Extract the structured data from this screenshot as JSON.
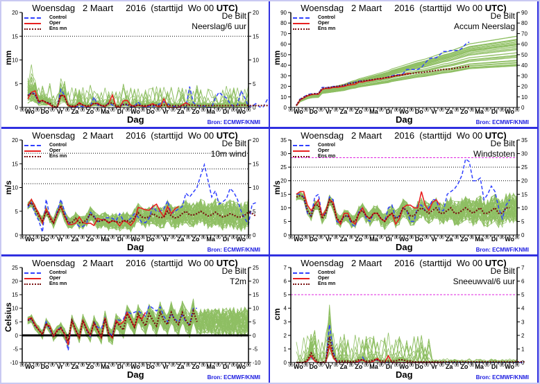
{
  "common": {
    "title_prefix": "Woensdag   2 Maart     2016  (starttijd  Wo 00 ",
    "title_suffix": "UTC)",
    "location": "De Bilt",
    "xlabel": "Dag",
    "source": "Bron:  ECMWF/KNMI",
    "legend": {
      "control": "Control",
      "oper": "Oper",
      "ensmean": "Ens mn"
    },
    "day_labels": [
      "Wo",
      "Do",
      "Vr",
      "Za",
      "Zo",
      "Ma",
      "Di",
      "Wo",
      "Do",
      "Vr",
      "Za",
      "Zo",
      "Ma",
      "Di",
      "Wo"
    ],
    "hour_tick_label": "00",
    "colors": {
      "control": "#3040ff",
      "oper": "#e82020",
      "ensmean": "#7a1010",
      "members": "#6aaa30",
      "warning": "#e020e0",
      "frame": "#3030e0"
    }
  },
  "chart_data": [
    {
      "id": "precip6h",
      "type": "line",
      "variable": "Neerslag/6 uur",
      "ylabel": "mm",
      "ylim": [
        0,
        20
      ],
      "yticks": [
        0,
        5,
        10,
        15,
        20
      ],
      "hlines_dotted": [
        15
      ],
      "hline_warning": null,
      "series": [
        {
          "name": "Control",
          "values": [
            2.5,
            3.2,
            2.8,
            1.0,
            1.5,
            1.0,
            0.8,
            0,
            0,
            3.8,
            2.5,
            0.5,
            0,
            0,
            0.3,
            0.2,
            0,
            0.2,
            2.2,
            0.5,
            0.3,
            0.2,
            1.0,
            0.5,
            0,
            0.2,
            0.8,
            0.5,
            0,
            0.2,
            1.2,
            0.3,
            0,
            0.3,
            0.2,
            0.5,
            0.8,
            1.2,
            0.8,
            0.3,
            0.2,
            0.2,
            0.1,
            0,
            4.4,
            1.0,
            0.5,
            0.2,
            0.3,
            0,
            0,
            2.0,
            3.2,
            2.5,
            2.0,
            0.8,
            0.2,
            0.5,
            3.5,
            2.0,
            0.2,
            0.3,
            0.8,
            0.1,
            0.1,
            1.5,
            2.5,
            3.0,
            0.8
          ]
        },
        {
          "name": "Oper",
          "values": [
            1.8,
            3.2,
            3.5,
            1.2,
            1.5,
            1.0,
            0.6,
            0,
            0,
            2.5,
            2.5,
            0.4,
            0.2,
            0.2,
            1.0,
            0.5,
            0.2,
            0.3,
            0.8,
            0.9,
            0.4,
            0.2,
            0.8,
            2.6,
            0.2,
            0,
            1.4,
            1.5,
            0.5,
            0.2,
            0.5,
            0.3,
            0.2,
            0.5,
            0.8,
            0.3,
            0.1,
            1.8,
            0.2,
            0,
            0,
            0,
            0.5,
            1.0,
            0.5
          ]
        },
        {
          "name": "Ens mn",
          "values": [
            2.5,
            3.0,
            2.6,
            1.2,
            1.4,
            1.1,
            0.9,
            0.2,
            0.1,
            2.7,
            2.2,
            0.4,
            0.3,
            0.3,
            0.8,
            0.5,
            0.3,
            0.4,
            0.9,
            0.7,
            0.4,
            0.3,
            0.8,
            1.0,
            0.3,
            0.3,
            0.6,
            0.7,
            0.3,
            0.3,
            0.5,
            0.4,
            0.4,
            0.4,
            0.5,
            0.5,
            0.4,
            0.5,
            0.5,
            0.4,
            0.4,
            0.4,
            0.4,
            0.4,
            0.5,
            0.5,
            0.4,
            0.4,
            0.4,
            0.4,
            0.4,
            0.4,
            0.4,
            0.4,
            0.4,
            0.4,
            0.4,
            0.4,
            0.5,
            0.5,
            0.4,
            0.4,
            0.4,
            0.4,
            0.4,
            0.4,
            0.5,
            0.5,
            0.4
          ]
        }
      ],
      "members_envelope_max": 9.5
    },
    {
      "id": "accum",
      "type": "line",
      "variable": "Accum Neerslag",
      "ylabel": "mm",
      "ylim": [
        0,
        90
      ],
      "yticks": [
        0,
        10,
        20,
        30,
        40,
        50,
        60,
        70,
        80,
        90
      ],
      "hlines_dotted": [],
      "hline_warning": null,
      "series": [
        {
          "name": "Control",
          "values": [
            2,
            8,
            10,
            12,
            13,
            13,
            13,
            19,
            19,
            19,
            20,
            20,
            20,
            21,
            23,
            23,
            24,
            25,
            25,
            25,
            26,
            26,
            27,
            27,
            28,
            29,
            30,
            31,
            31,
            32,
            36,
            36,
            36,
            36,
            38,
            42,
            46,
            47,
            47,
            50,
            53,
            53,
            54,
            54,
            54,
            56,
            60,
            62
          ]
        },
        {
          "name": "Oper",
          "values": [
            1.5,
            7,
            9,
            11,
            12,
            12.5,
            12.5,
            17,
            18,
            18,
            19,
            19,
            19.5,
            20,
            21,
            21.5,
            22,
            24,
            24,
            25,
            25.5,
            26,
            27,
            27,
            28,
            28.5,
            29,
            30,
            30.5,
            31,
            32,
            32.5
          ]
        },
        {
          "name": "Ens mn",
          "values": [
            2,
            7.5,
            9.5,
            11.5,
            12.5,
            13,
            13,
            18,
            18.5,
            19,
            19.5,
            20,
            20.5,
            21,
            22,
            23,
            23.5,
            24.5,
            25,
            25.5,
            26,
            26.5,
            27,
            27.5,
            28,
            28.5,
            29.5,
            30,
            30.5,
            31,
            31.5,
            32,
            32.5,
            33,
            33.2,
            33.5,
            34,
            34.5,
            35,
            35.5,
            36,
            36.2,
            36.5,
            37,
            37.5,
            38,
            38.5,
            39
          ]
        }
      ]
    },
    {
      "id": "wind10m",
      "type": "line",
      "variable": "10m wind",
      "ylabel": "m/s",
      "ylim": [
        0,
        20
      ],
      "yticks": [
        0,
        5,
        10,
        15,
        20
      ],
      "hlines_dotted": [
        10.8,
        13.9,
        17.2
      ],
      "hline_warning": null,
      "series": [
        {
          "name": "Control",
          "values": [
            5.8,
            6.8,
            4.5,
            3.0,
            0.6,
            7.5,
            4.0,
            2.5,
            5.0,
            7.5,
            5.0,
            2.5,
            2.2,
            2.5,
            1.8,
            1.8,
            2.5,
            4.8,
            4.0,
            2.8,
            3.0,
            3.6,
            3.6,
            3.5,
            3.0,
            4.5,
            3.0,
            2.8,
            3.5,
            4.5,
            3.8,
            2.6,
            2.6,
            3.5,
            6.0,
            5.0,
            5.0,
            5.5,
            7.2,
            4.5,
            5.0,
            5.5,
            6.0,
            8.8,
            8.0,
            9.0,
            10.0,
            12.5,
            14.8,
            11.5,
            8.0,
            9.3,
            6.5,
            7.0,
            7.6,
            9.8,
            9.0,
            7.5,
            5.0,
            3.5,
            2.2,
            6.5,
            6.8
          ]
        },
        {
          "name": "Oper",
          "values": [
            6.2,
            7.5,
            6.0,
            4.5,
            2.5,
            5.5,
            4.0,
            2.5,
            4.5,
            6.0,
            4.0,
            2.2,
            2.2,
            2.5,
            3.8,
            2.6,
            2.4,
            2.5,
            2.0,
            3.5,
            3.2,
            3.2,
            2.5,
            3.0,
            2.8,
            1.9,
            3.0,
            2.7,
            2.0,
            3.0,
            5.8,
            5.6,
            5.3,
            5.2,
            6.0,
            6.5,
            5.0,
            3.8,
            6.0,
            4.5,
            5.5,
            6.0
          ]
        },
        {
          "name": "Ens mn",
          "values": [
            6.2,
            6.8,
            5.5,
            4.0,
            3.0,
            5.0,
            3.5,
            2.5,
            4.5,
            6.2,
            4.0,
            2.6,
            2.6,
            3.5,
            2.6,
            2.6,
            3.2,
            4.5,
            3.8,
            2.8,
            3.0,
            3.2,
            2.6,
            3.0,
            2.8,
            2.6,
            3.0,
            3.0,
            2.6,
            3.6,
            4.7,
            3.8,
            3.6,
            3.8,
            4.5,
            4.0,
            3.6,
            3.8,
            5.0,
            4.0,
            3.6,
            3.8,
            4.5,
            5.0,
            4.2,
            4.2,
            4.5,
            5.0,
            4.5,
            4.0,
            4.2,
            4.8,
            4.2,
            3.8,
            4.0,
            4.5,
            4.2,
            3.8,
            3.8,
            4.2,
            4.8,
            4.5,
            4.0
          ]
        }
      ]
    },
    {
      "id": "gusts",
      "type": "line",
      "variable": "Windstoten",
      "ylabel": "m/s",
      "ylim": [
        0,
        35
      ],
      "yticks": [
        0,
        5,
        10,
        15,
        20,
        25,
        30,
        35
      ],
      "hlines_dotted": [
        20,
        25
      ],
      "hline_warning": 28.5,
      "series": [
        {
          "name": "Control",
          "values": [
            15,
            15,
            14,
            8,
            7,
            14,
            15,
            7,
            8,
            14,
            13,
            5,
            4,
            7,
            7,
            4,
            3,
            9,
            10,
            6,
            5,
            8,
            8,
            6,
            5,
            10,
            11,
            6,
            7,
            10,
            9,
            5,
            5,
            11,
            11,
            9,
            10,
            13,
            13,
            9,
            9,
            15,
            16,
            17,
            19,
            22,
            28,
            27,
            20,
            20,
            21,
            13,
            15,
            18,
            16,
            10,
            6,
            11,
            13
          ]
        },
        {
          "name": "Oper",
          "values": [
            15,
            16,
            16,
            11,
            9,
            11,
            13,
            7,
            9,
            13,
            12,
            6,
            4,
            8,
            8,
            5,
            4,
            8,
            10,
            7,
            6,
            8,
            8,
            6,
            5,
            7,
            8,
            4,
            6,
            10,
            11,
            11,
            10,
            10,
            16,
            11,
            9,
            12,
            13,
            11
          ]
        },
        {
          "name": "Ens mn",
          "values": [
            14,
            14.5,
            14,
            9,
            7,
            11,
            11,
            6,
            8,
            13,
            11,
            6,
            5,
            7,
            7,
            5,
            5,
            8,
            9,
            7,
            6,
            8,
            8,
            6,
            5,
            7,
            8,
            6,
            7,
            10,
            9,
            7,
            7,
            9,
            10,
            9,
            8,
            9,
            10,
            8,
            8,
            9,
            10,
            8,
            8,
            9,
            10,
            9,
            8,
            9,
            10,
            8,
            8,
            9,
            10,
            8,
            8,
            10,
            10
          ]
        }
      ]
    },
    {
      "id": "t2m",
      "type": "line",
      "variable": "T2m",
      "ylabel": "Celsius",
      "ylim": [
        -10,
        25
      ],
      "yticks": [
        -10,
        -5,
        0,
        5,
        10,
        15,
        20,
        25
      ],
      "hlines_dotted": [],
      "hline_warning": null,
      "zero_line": 0,
      "series": [
        {
          "name": "Control",
          "values": [
            5.5,
            6.0,
            3.5,
            2.0,
            0.5,
            5.0,
            2.0,
            -0.5,
            2.0,
            3.0,
            0.5,
            -5.5,
            6.0,
            2.0,
            -0.5,
            5.5,
            2.0,
            -0.5,
            5.0,
            3.0,
            2.5,
            6.5,
            1.0,
            0,
            6.0,
            5.5,
            6.0,
            9.0,
            8.0,
            8.5,
            9.0,
            8.0,
            7.0,
            11.0,
            10.0,
            9.0,
            10.5,
            7.0,
            5.0,
            8.0,
            6.0,
            5.0,
            7.5,
            5.0,
            4.0,
            10.0,
            10.0
          ]
        },
        {
          "name": "Oper",
          "values": [
            6.0,
            6.5,
            4.0,
            2.0,
            0.5,
            4.0,
            3.5,
            -0.5,
            2.0,
            2.5,
            0.5,
            -3.5,
            5.5,
            2.0,
            -1.0,
            5.5,
            2.5,
            0,
            4.5,
            2.0,
            -1.0,
            6.5,
            0.5,
            -1.0,
            5.5,
            4.0,
            5.0,
            8.5,
            6.0,
            3.0,
            7.0,
            6.0,
            8.5
          ]
        },
        {
          "name": "Ens mn",
          "values": [
            5.5,
            6.2,
            3.5,
            2.0,
            0.3,
            4.5,
            2.5,
            -0.2,
            1.5,
            2.8,
            0.5,
            -2.0,
            5.5,
            2.0,
            -0.5,
            5.5,
            2.0,
            0,
            4.8,
            2.0,
            -0.5,
            6.2,
            0.5,
            -0.5,
            5.0,
            3.5,
            2.0,
            8.0,
            5.5,
            3.0,
            8.0,
            5.5,
            3.5,
            8.0,
            5.5,
            3.5,
            8.5,
            5.5,
            4.0,
            8.5,
            5.5,
            4.0,
            8.5,
            5.5,
            3.5,
            9.0,
            5.0
          ]
        }
      ]
    },
    {
      "id": "snow6h",
      "type": "line",
      "variable": "Sneeuwval/6 uur",
      "ylabel": "cm",
      "ylim": [
        0,
        7
      ],
      "yticks": [
        0,
        1,
        2,
        3,
        4,
        5,
        6,
        7
      ],
      "hlines_dotted": [],
      "hline_warning": 5,
      "series": [
        {
          "name": "Control",
          "values": [
            0,
            0,
            0,
            0.1,
            0.4,
            0.1,
            0,
            0,
            0,
            2.8,
            0.8,
            0,
            0,
            0,
            0,
            0,
            0,
            0,
            0.4,
            0,
            0,
            0.1,
            0.2,
            0,
            0,
            0,
            0,
            0,
            0,
            0,
            0,
            0,
            0,
            0,
            0,
            0,
            0,
            0,
            0,
            0,
            0,
            0,
            0,
            0,
            0,
            0,
            0,
            0,
            0,
            0,
            0,
            0,
            0,
            0,
            0,
            0,
            0,
            0,
            0,
            0,
            0,
            0,
            0
          ]
        },
        {
          "name": "Oper",
          "values": [
            0,
            0,
            0,
            0.1,
            0.5,
            0.1,
            0,
            0,
            0,
            1.3,
            0.4,
            0,
            0,
            0,
            0,
            0,
            0,
            0.1,
            0.2,
            0,
            0,
            0.1,
            0.3,
            0,
            0,
            0.5,
            0,
            0,
            0,
            0,
            0,
            0,
            0,
            0,
            0,
            0,
            0,
            0,
            0,
            0,
            0
          ]
        },
        {
          "name": "Ens mn",
          "values": [
            0,
            0,
            0,
            0.2,
            0.7,
            0.3,
            0,
            0,
            0.1,
            1.9,
            0.6,
            0.1,
            0.1,
            0.1,
            0.1,
            0.05,
            0.1,
            0.2,
            0.2,
            0.1,
            0.1,
            0.2,
            0.2,
            0.1,
            0.1,
            0.1,
            0.1,
            0.1,
            0.2,
            0.2,
            0.1,
            0.1,
            0.05,
            0.05,
            0.05,
            0.05,
            0.05,
            0.05,
            0.05,
            0.05,
            0.05,
            0.05,
            0.05,
            0.05,
            0.05,
            0.05,
            0.05,
            0.05,
            0.05,
            0.05,
            0.05,
            0.05,
            0.05,
            0.05,
            0.05,
            0.05,
            0.05,
            0.05,
            0.05,
            0.05,
            0.05,
            0.05,
            0.05
          ]
        }
      ],
      "members_peaks": [
        3.9,
        5.4,
        2.3,
        2.0,
        3.3,
        2.3,
        4.4,
        0.7
      ]
    }
  ]
}
